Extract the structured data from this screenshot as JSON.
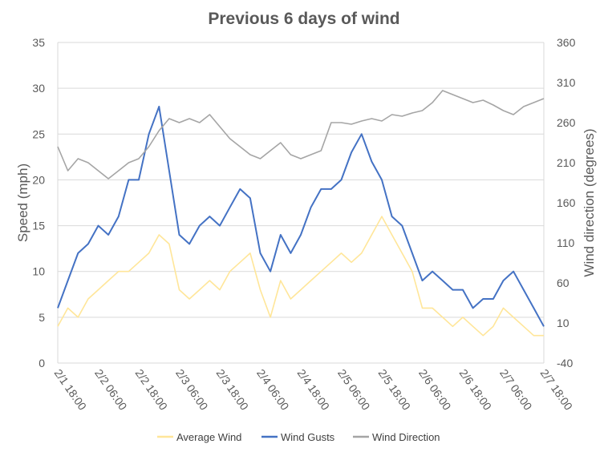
{
  "chart_data": {
    "type": "line",
    "title": "Previous 6 days of wind",
    "ylabel": "Speed (mph)",
    "y2label": "Wind direction (degrees)",
    "ylim": [
      0,
      35
    ],
    "y2lim": [
      -40,
      360
    ],
    "y_ticks": [
      "0",
      "5",
      "10",
      "15",
      "20",
      "25",
      "30",
      "35"
    ],
    "y2_ticks": [
      "-40",
      "10",
      "60",
      "110",
      "160",
      "210",
      "260",
      "310",
      "360"
    ],
    "x_ticks": [
      "2/1 18:00",
      "2/2 06:00",
      "2/2 18:00",
      "2/3 06:00",
      "2/3 18:00",
      "2/4 06:00",
      "2/4 18:00",
      "2/5 06:00",
      "2/5 18:00",
      "2/6 06:00",
      "2/6 18:00",
      "2/7 06:00",
      "2/7 18:00"
    ],
    "x_range_hours": [
      0,
      144
    ],
    "grid": true,
    "legend_position": "bottom",
    "series": [
      {
        "name": "Average Wind",
        "axis": "left",
        "color": "#ffe699",
        "points": [
          [
            0,
            4
          ],
          [
            3,
            6
          ],
          [
            6,
            5
          ],
          [
            9,
            7
          ],
          [
            12,
            8
          ],
          [
            15,
            9
          ],
          [
            18,
            10
          ],
          [
            21,
            10
          ],
          [
            24,
            11
          ],
          [
            27,
            12
          ],
          [
            30,
            14
          ],
          [
            33,
            13
          ],
          [
            36,
            8
          ],
          [
            39,
            7
          ],
          [
            42,
            8
          ],
          [
            45,
            9
          ],
          [
            48,
            8
          ],
          [
            51,
            10
          ],
          [
            54,
            11
          ],
          [
            57,
            12
          ],
          [
            60,
            8
          ],
          [
            63,
            5
          ],
          [
            66,
            9
          ],
          [
            69,
            7
          ],
          [
            72,
            8
          ],
          [
            75,
            9
          ],
          [
            78,
            10
          ],
          [
            81,
            11
          ],
          [
            84,
            12
          ],
          [
            87,
            11
          ],
          [
            90,
            12
          ],
          [
            93,
            14
          ],
          [
            96,
            16
          ],
          [
            99,
            14
          ],
          [
            102,
            12
          ],
          [
            105,
            10
          ],
          [
            108,
            6
          ],
          [
            111,
            6
          ],
          [
            114,
            5
          ],
          [
            117,
            4
          ],
          [
            120,
            5
          ],
          [
            123,
            4
          ],
          [
            126,
            3
          ],
          [
            129,
            4
          ],
          [
            132,
            6
          ],
          [
            135,
            5
          ],
          [
            138,
            4
          ],
          [
            141,
            3
          ],
          [
            144,
            3
          ]
        ]
      },
      {
        "name": "Wind Gusts",
        "axis": "left",
        "color": "#4472c4",
        "points": [
          [
            0,
            6
          ],
          [
            3,
            9
          ],
          [
            6,
            12
          ],
          [
            9,
            13
          ],
          [
            12,
            15
          ],
          [
            15,
            14
          ],
          [
            18,
            16
          ],
          [
            21,
            20
          ],
          [
            24,
            20
          ],
          [
            27,
            25
          ],
          [
            30,
            28
          ],
          [
            33,
            21
          ],
          [
            36,
            14
          ],
          [
            39,
            13
          ],
          [
            42,
            15
          ],
          [
            45,
            16
          ],
          [
            48,
            15
          ],
          [
            51,
            17
          ],
          [
            54,
            19
          ],
          [
            57,
            18
          ],
          [
            60,
            12
          ],
          [
            63,
            10
          ],
          [
            66,
            14
          ],
          [
            69,
            12
          ],
          [
            72,
            14
          ],
          [
            75,
            17
          ],
          [
            78,
            19
          ],
          [
            81,
            19
          ],
          [
            84,
            20
          ],
          [
            87,
            23
          ],
          [
            90,
            25
          ],
          [
            93,
            22
          ],
          [
            96,
            20
          ],
          [
            99,
            16
          ],
          [
            102,
            15
          ],
          [
            105,
            12
          ],
          [
            108,
            9
          ],
          [
            111,
            10
          ],
          [
            114,
            9
          ],
          [
            117,
            8
          ],
          [
            120,
            8
          ],
          [
            123,
            6
          ],
          [
            126,
            7
          ],
          [
            129,
            7
          ],
          [
            132,
            9
          ],
          [
            135,
            10
          ],
          [
            138,
            8
          ],
          [
            141,
            6
          ],
          [
            144,
            4
          ]
        ]
      },
      {
        "name": "Wind Direction",
        "axis": "right",
        "color": "#a5a5a5",
        "points": [
          [
            0,
            230
          ],
          [
            3,
            200
          ],
          [
            6,
            215
          ],
          [
            9,
            210
          ],
          [
            12,
            200
          ],
          [
            15,
            190
          ],
          [
            18,
            200
          ],
          [
            21,
            210
          ],
          [
            24,
            215
          ],
          [
            27,
            230
          ],
          [
            30,
            250
          ],
          [
            33,
            265
          ],
          [
            36,
            260
          ],
          [
            39,
            265
          ],
          [
            42,
            260
          ],
          [
            45,
            270
          ],
          [
            48,
            255
          ],
          [
            51,
            240
          ],
          [
            54,
            230
          ],
          [
            57,
            220
          ],
          [
            60,
            215
          ],
          [
            63,
            225
          ],
          [
            66,
            235
          ],
          [
            69,
            220
          ],
          [
            72,
            215
          ],
          [
            75,
            220
          ],
          [
            78,
            225
          ],
          [
            81,
            260
          ],
          [
            84,
            260
          ],
          [
            87,
            258
          ],
          [
            90,
            262
          ],
          [
            93,
            265
          ],
          [
            96,
            262
          ],
          [
            99,
            270
          ],
          [
            102,
            268
          ],
          [
            105,
            272
          ],
          [
            108,
            275
          ],
          [
            111,
            285
          ],
          [
            114,
            300
          ],
          [
            117,
            295
          ],
          [
            120,
            290
          ],
          [
            123,
            285
          ],
          [
            126,
            288
          ],
          [
            129,
            282
          ],
          [
            132,
            275
          ],
          [
            135,
            270
          ],
          [
            138,
            280
          ],
          [
            141,
            285
          ],
          [
            144,
            290
          ]
        ]
      }
    ]
  }
}
